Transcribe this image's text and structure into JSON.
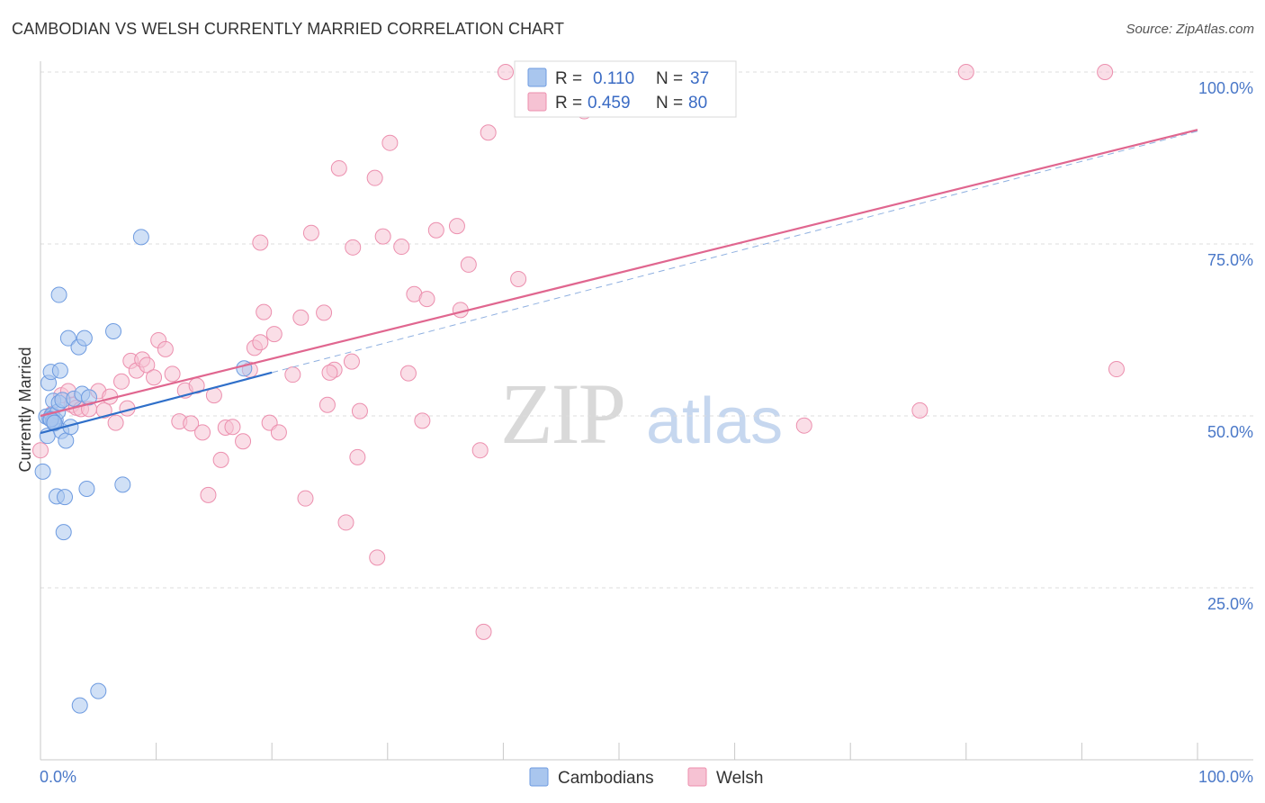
{
  "title": "CAMBODIAN VS WELSH CURRENTLY MARRIED CORRELATION CHART",
  "source": "Source: ZipAtlas.com",
  "watermark": {
    "zip": "ZIP",
    "atlas": "atlas"
  },
  "colors": {
    "cambodian_fill": "#a9c6ee",
    "cambodian_stroke": "#6e9be0",
    "cambodian_line": "#2f6fc9",
    "welsh_fill": "#f6c2d3",
    "welsh_stroke": "#ec8fae",
    "welsh_line": "#e0668f",
    "tick_label": "#4a78c8",
    "grid": "#dddddd"
  },
  "legend": {
    "rows": [
      {
        "r_label": "R =",
        "r_value": "0.110",
        "n_label": "N =",
        "n_value": "37"
      },
      {
        "r_label": "R =",
        "r_value": "0.459",
        "n_label": "N =",
        "n_value": "80"
      }
    ]
  },
  "chart_data": {
    "type": "scatter",
    "title": "CAMBODIAN VS WELSH CURRENTLY MARRIED CORRELATION CHART",
    "xlabel": "",
    "ylabel": "Currently Married",
    "xlim": [
      0,
      100
    ],
    "ylim": [
      0,
      104
    ],
    "x_tick_labels": [
      "0.0%",
      "100.0%"
    ],
    "y_ticks": [
      25,
      50,
      75,
      100
    ],
    "y_tick_labels": [
      "25.0%",
      "50.0%",
      "75.0%",
      "100.0%"
    ],
    "grid": "horizontal dashed",
    "legend_placement": "top-center",
    "series": [
      {
        "name": "Cambodians",
        "r": 0.11,
        "n": 37,
        "trend": {
          "x0": 0,
          "y0": 47.5,
          "x1": 20,
          "y1": 56.3
        },
        "points": [
          [
            0.2,
            41.9
          ],
          [
            0.5,
            49.9
          ],
          [
            0.6,
            47.1
          ],
          [
            0.7,
            54.8
          ],
          [
            0.8,
            49.6
          ],
          [
            0.9,
            56.4
          ],
          [
            1.0,
            50.1
          ],
          [
            1.1,
            52.2
          ],
          [
            1.2,
            48.9
          ],
          [
            1.3,
            49.4
          ],
          [
            1.4,
            38.3
          ],
          [
            1.5,
            50.6
          ],
          [
            1.6,
            51.9
          ],
          [
            1.7,
            56.6
          ],
          [
            1.8,
            47.8
          ],
          [
            1.9,
            52.3
          ],
          [
            2.0,
            33.1
          ],
          [
            2.1,
            38.2
          ],
          [
            2.2,
            46.4
          ],
          [
            2.4,
            61.3
          ],
          [
            2.6,
            48.4
          ],
          [
            2.9,
            52.5
          ],
          [
            3.3,
            60.0
          ],
          [
            3.4,
            7.9
          ],
          [
            3.6,
            53.2
          ],
          [
            3.8,
            61.3
          ],
          [
            4.0,
            39.4
          ],
          [
            4.2,
            52.7
          ],
          [
            5.0,
            10.0
          ],
          [
            6.3,
            62.3
          ],
          [
            7.1,
            40.0
          ],
          [
            8.7,
            76.0
          ],
          [
            1.6,
            67.6
          ],
          [
            1.1,
            49.2
          ],
          [
            0.9,
            49.5
          ],
          [
            17.6,
            56.9
          ],
          [
            1.2,
            49.0
          ]
        ]
      },
      {
        "name": "Welsh",
        "r": 0.459,
        "n": 80,
        "trend": {
          "x0": 0,
          "y0": 50.0,
          "x1": 100,
          "y1": 91.6
        },
        "trend_extension": {
          "x0": 20,
          "y0": 56.3,
          "x1": 100,
          "y1": 91.4
        },
        "points": [
          [
            0.0,
            45.0
          ],
          [
            1.0,
            50.3
          ],
          [
            1.8,
            53.0
          ],
          [
            2.4,
            53.6
          ],
          [
            2.7,
            51.6
          ],
          [
            3.1,
            51.2
          ],
          [
            3.5,
            51.0
          ],
          [
            4.2,
            51.0
          ],
          [
            5.0,
            53.6
          ],
          [
            5.5,
            50.8
          ],
          [
            6.0,
            52.8
          ],
          [
            6.5,
            49.0
          ],
          [
            7.0,
            55.0
          ],
          [
            7.5,
            51.1
          ],
          [
            7.8,
            58.0
          ],
          [
            8.3,
            56.6
          ],
          [
            8.8,
            58.2
          ],
          [
            9.2,
            57.4
          ],
          [
            9.8,
            55.6
          ],
          [
            10.2,
            61.0
          ],
          [
            10.8,
            59.7
          ],
          [
            11.4,
            56.1
          ],
          [
            12.0,
            49.2
          ],
          [
            12.5,
            53.7
          ],
          [
            13.0,
            48.9
          ],
          [
            13.5,
            54.4
          ],
          [
            14.0,
            47.6
          ],
          [
            14.5,
            38.5
          ],
          [
            15.0,
            53.0
          ],
          [
            15.6,
            43.6
          ],
          [
            16.0,
            48.3
          ],
          [
            16.6,
            48.4
          ],
          [
            17.5,
            46.3
          ],
          [
            18.1,
            56.7
          ],
          [
            18.5,
            59.9
          ],
          [
            19.0,
            75.2
          ],
          [
            19.3,
            65.1
          ],
          [
            19.8,
            49.0
          ],
          [
            20.2,
            61.9
          ],
          [
            20.6,
            47.6
          ],
          [
            21.8,
            56.0
          ],
          [
            22.5,
            64.3
          ],
          [
            22.9,
            38.0
          ],
          [
            23.4,
            76.6
          ],
          [
            24.5,
            65.0
          ],
          [
            24.8,
            51.6
          ],
          [
            25.4,
            56.7
          ],
          [
            25.8,
            86.0
          ],
          [
            26.4,
            34.5
          ],
          [
            26.9,
            57.9
          ],
          [
            27.4,
            44.0
          ],
          [
            27.6,
            50.7
          ],
          [
            28.9,
            84.6
          ],
          [
            29.1,
            29.4
          ],
          [
            29.6,
            76.1
          ],
          [
            30.2,
            89.7
          ],
          [
            31.2,
            74.6
          ],
          [
            31.8,
            56.2
          ],
          [
            32.3,
            67.7
          ],
          [
            33.4,
            67.0
          ],
          [
            34.2,
            77.0
          ],
          [
            36.0,
            77.6
          ],
          [
            36.3,
            65.4
          ],
          [
            37.0,
            72.0
          ],
          [
            38.0,
            45.0
          ],
          [
            38.3,
            18.6
          ],
          [
            38.7,
            91.2
          ],
          [
            40.2,
            100.0
          ],
          [
            41.3,
            69.9
          ],
          [
            47.0,
            94.3
          ],
          [
            52.0,
            100.0
          ],
          [
            66.0,
            48.6
          ],
          [
            80.0,
            100.0
          ],
          [
            76.0,
            50.8
          ],
          [
            93.0,
            56.8
          ],
          [
            92.0,
            100.0
          ],
          [
            25.0,
            56.3
          ],
          [
            33.0,
            49.3
          ],
          [
            19.0,
            60.7
          ],
          [
            27.0,
            74.5
          ]
        ]
      }
    ]
  },
  "bottom_legend": [
    "Cambodians",
    "Welsh"
  ]
}
